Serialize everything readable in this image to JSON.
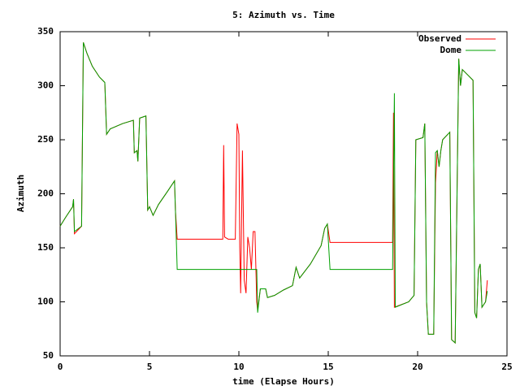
{
  "chart_data": {
    "type": "line",
    "title": "5: Azimuth vs. Time",
    "xlabel": "time (Elapse Hours)",
    "ylabel": "Azimuth",
    "xlim": [
      0,
      25
    ],
    "xticks": [
      0,
      5,
      10,
      15,
      20,
      25
    ],
    "ylim": [
      50,
      350
    ],
    "yticks": [
      50,
      100,
      150,
      200,
      250,
      300,
      350
    ],
    "legend": "top-right",
    "series": [
      {
        "name": "Observed",
        "color": "#ff0000",
        "x": [
          0,
          0.3,
          0.7,
          0.75,
          0.8,
          1.2,
          1.3,
          1.5,
          1.8,
          2.2,
          2.5,
          2.6,
          2.8,
          3.5,
          4.1,
          4.15,
          4.3,
          4.35,
          4.45,
          4.8,
          4.9,
          5.0,
          5.2,
          5.5,
          6.0,
          6.4,
          6.45,
          6.55,
          9.1,
          9.15,
          9.2,
          9.4,
          9.8,
          9.9,
          10.0,
          10.05,
          10.1,
          10.2,
          10.3,
          10.4,
          10.5,
          10.6,
          10.7,
          10.8,
          10.9,
          11.0,
          11.05,
          11.2,
          11.5,
          11.6,
          12.0,
          12.5,
          13.0,
          13.2,
          13.4,
          14.0,
          14.6,
          14.8,
          14.95,
          15.1,
          18.6,
          18.65,
          18.7,
          19.5,
          19.8,
          19.9,
          20.3,
          20.4,
          20.5,
          20.6,
          20.9,
          21.0,
          21.1,
          21.2,
          21.3,
          21.4,
          21.8,
          21.9,
          22.1,
          22.3,
          22.4,
          22.5,
          22.8,
          23.1,
          23.2,
          23.3,
          23.4,
          23.5,
          23.6,
          23.8,
          23.9
        ],
        "values": [
          170,
          178,
          188,
          195,
          163,
          170,
          340,
          330,
          318,
          308,
          303,
          255,
          260,
          265,
          268,
          238,
          240,
          230,
          270,
          272,
          185,
          188,
          180,
          190,
          202,
          212,
          185,
          158,
          158,
          245,
          160,
          158,
          158,
          265,
          255,
          150,
          108,
          240,
          120,
          108,
          160,
          150,
          130,
          165,
          165,
          100,
          92,
          112,
          112,
          104,
          106,
          111,
          115,
          132,
          122,
          135,
          152,
          168,
          172,
          155,
          155,
          275,
          95,
          100,
          106,
          250,
          252,
          265,
          100,
          70,
          70,
          210,
          240,
          225,
          240,
          250,
          257,
          65,
          62,
          325,
          300,
          315,
          310,
          305,
          90,
          85,
          130,
          135,
          95,
          100,
          120
        ]
      },
      {
        "name": "Dome",
        "color": "#00a000",
        "x": [
          0,
          0.3,
          0.7,
          0.75,
          0.8,
          1.2,
          1.3,
          1.5,
          1.8,
          2.2,
          2.5,
          2.6,
          2.8,
          3.5,
          4.1,
          4.15,
          4.3,
          4.35,
          4.45,
          4.8,
          4.9,
          5.0,
          5.2,
          5.5,
          6.0,
          6.4,
          6.45,
          6.55,
          11.0,
          11.05,
          11.2,
          11.5,
          11.6,
          12.0,
          12.5,
          13.0,
          13.2,
          13.4,
          14.0,
          14.6,
          14.8,
          14.95,
          15.1,
          18.6,
          18.7,
          18.75,
          19.5,
          19.8,
          19.9,
          20.3,
          20.4,
          20.5,
          20.6,
          20.9,
          21.0,
          21.1,
          21.2,
          21.3,
          21.4,
          21.8,
          21.9,
          22.1,
          22.3,
          22.4,
          22.5,
          22.8,
          23.1,
          23.2,
          23.3,
          23.4,
          23.5,
          23.6,
          23.8,
          23.9
        ],
        "values": [
          170,
          178,
          188,
          195,
          165,
          170,
          340,
          330,
          318,
          308,
          303,
          255,
          260,
          265,
          268,
          238,
          240,
          230,
          270,
          272,
          185,
          188,
          180,
          190,
          202,
          212,
          185,
          130,
          130,
          90,
          112,
          112,
          104,
          106,
          111,
          115,
          132,
          122,
          135,
          152,
          168,
          172,
          130,
          130,
          293,
          95,
          100,
          106,
          250,
          252,
          265,
          100,
          70,
          70,
          238,
          240,
          225,
          240,
          250,
          257,
          65,
          62,
          325,
          300,
          315,
          310,
          305,
          90,
          85,
          130,
          135,
          95,
          100,
          110
        ]
      }
    ]
  }
}
